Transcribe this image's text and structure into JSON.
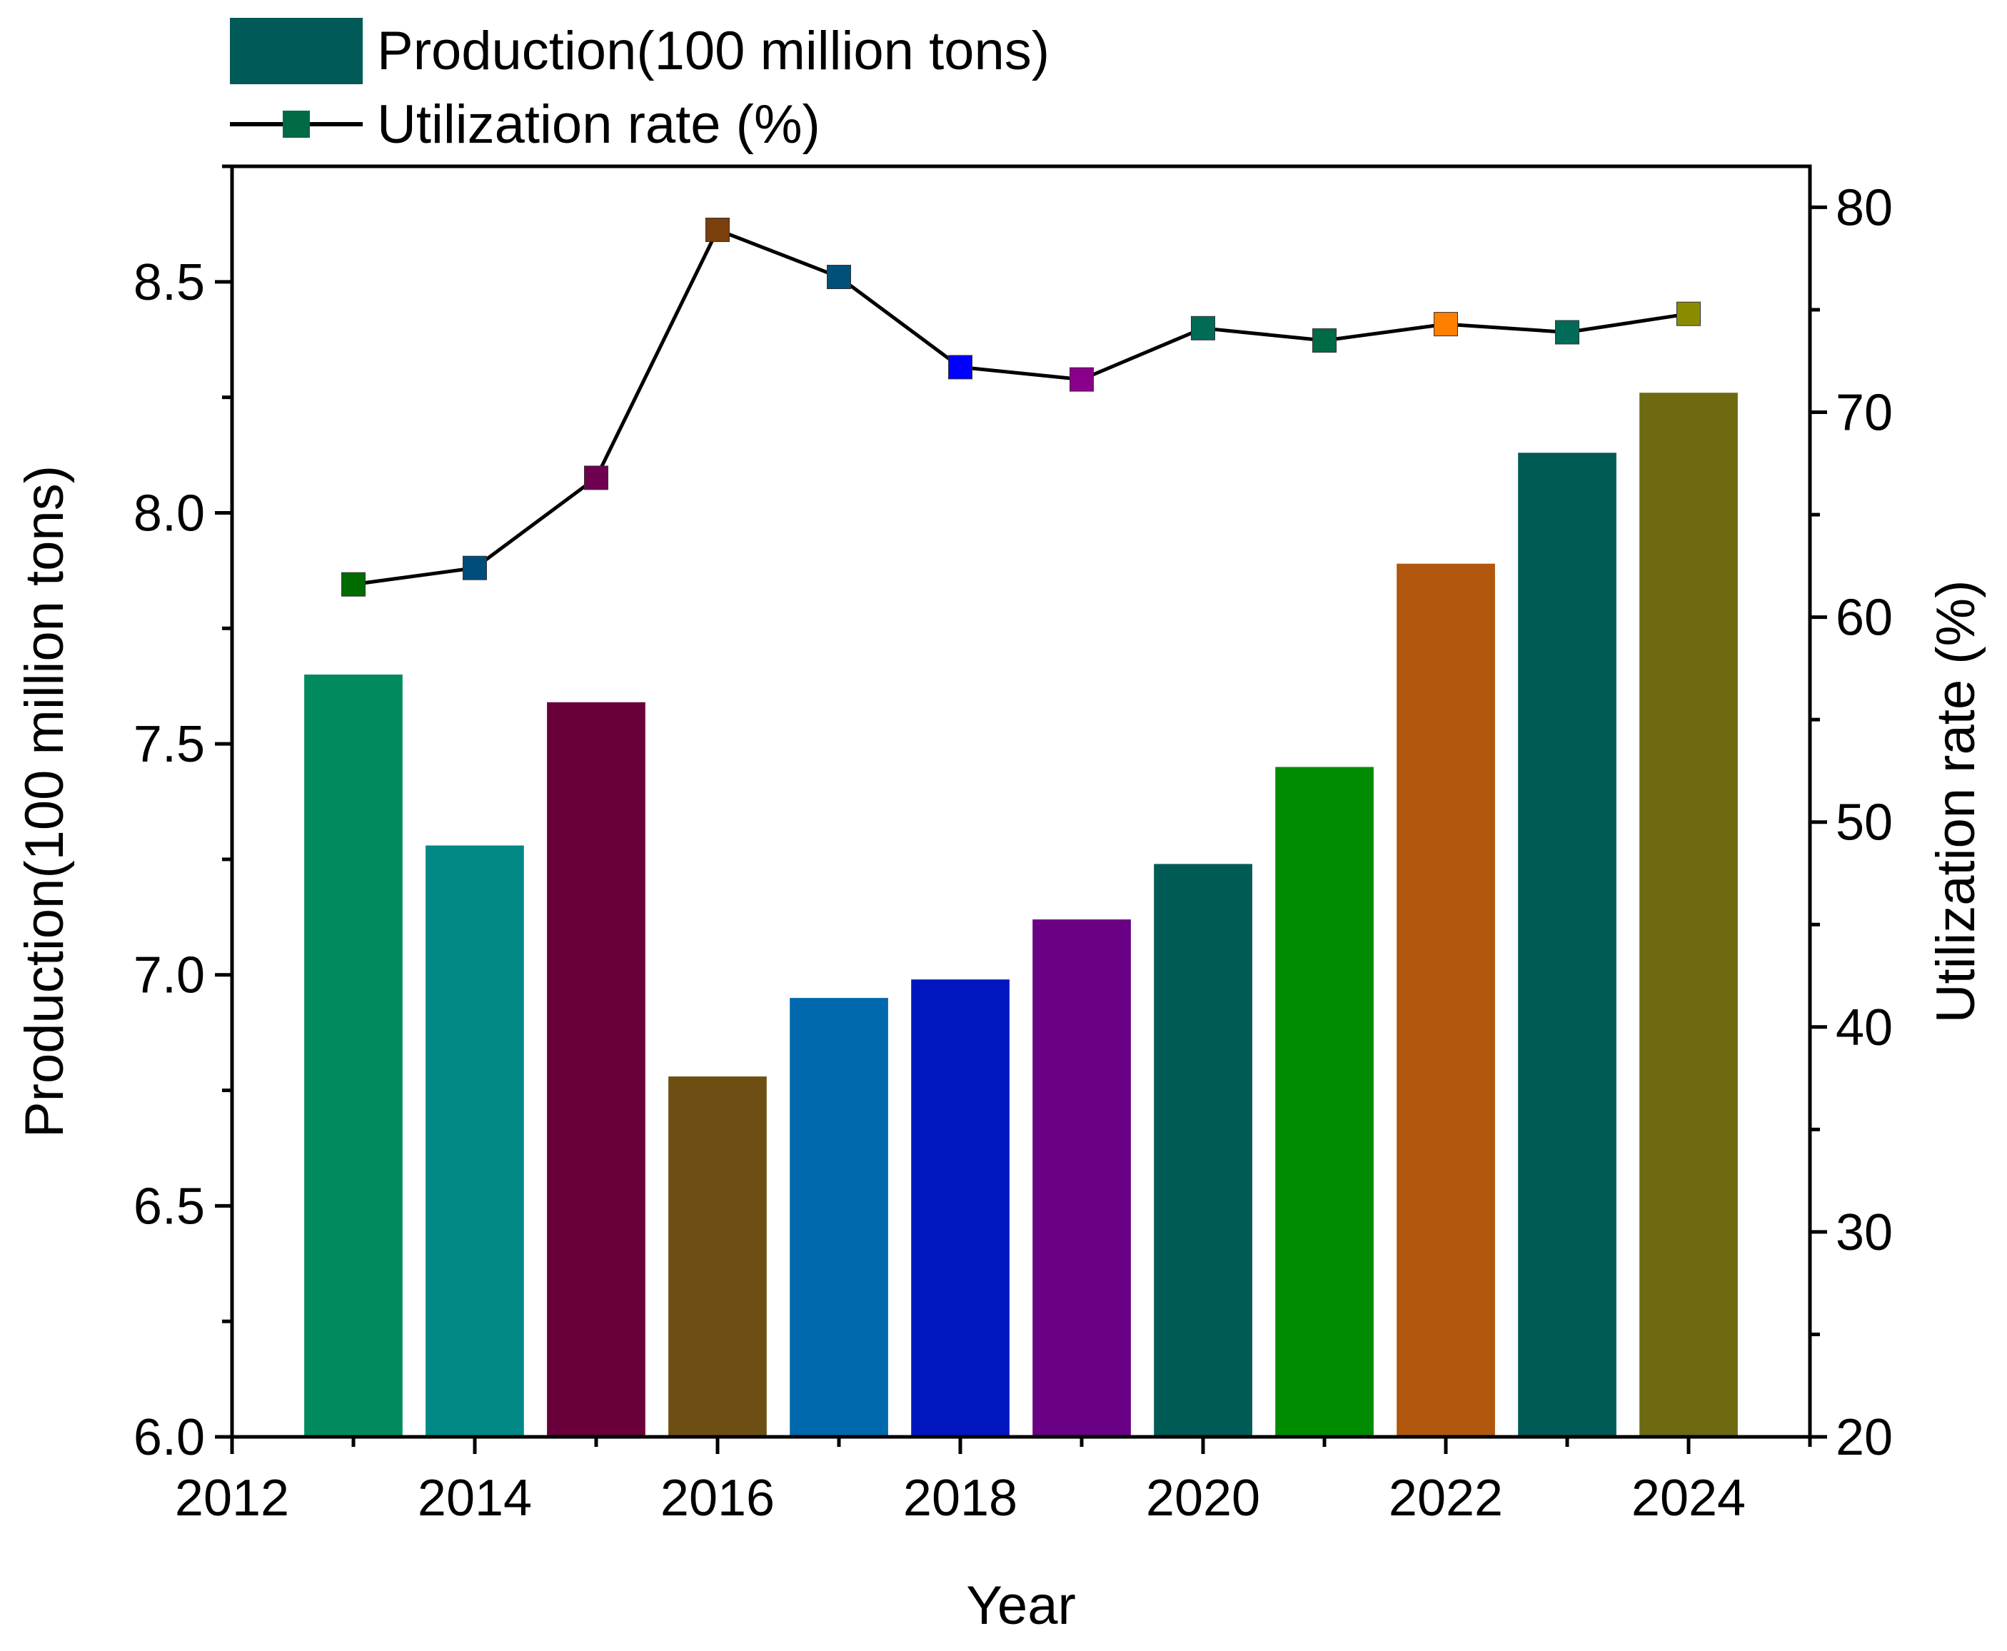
{
  "chart_data": {
    "type": "bar",
    "title": "",
    "xlabel": "Year",
    "ylabel": "Production(100 million tons)",
    "y2label": "Utilization rate (%)",
    "x": [
      2013,
      2014,
      2015,
      2016,
      2017,
      2018,
      2019,
      2020,
      2021,
      2022,
      2023,
      2024
    ],
    "xlim": [
      2012,
      2025
    ],
    "xticks": [
      2012,
      2014,
      2016,
      2018,
      2020,
      2022,
      2024
    ],
    "ylim": [
      6.0,
      8.75
    ],
    "yticks": [
      6.0,
      6.5,
      7.0,
      7.5,
      8.0,
      8.5
    ],
    "y2lim": [
      20,
      82
    ],
    "y2ticks": [
      20,
      30,
      40,
      50,
      60,
      70,
      80
    ],
    "grid": false,
    "legend_position": "top-left, above plot",
    "series": [
      {
        "name": "Production(100 million tons)",
        "type": "bar",
        "axis": "left",
        "legend_color": "#005a57",
        "values": [
          7.65,
          7.28,
          7.59,
          6.78,
          6.95,
          6.99,
          7.12,
          7.24,
          7.45,
          7.89,
          8.13,
          8.26
        ],
        "colors": [
          "#008a5e",
          "#008985",
          "#69003a",
          "#6e4f13",
          "#0068ad",
          "#0017c0",
          "#6a0084",
          "#005b57",
          "#008c00",
          "#b1570e",
          "#005b57",
          "#6e6a12"
        ]
      },
      {
        "name": "Utilization rate (%)",
        "type": "line",
        "axis": "right",
        "legend_color": "#006a44",
        "line_color": "#000000",
        "values": [
          61.6,
          62.4,
          66.8,
          78.9,
          76.6,
          72.2,
          71.6,
          74.1,
          73.5,
          74.3,
          73.9,
          74.8
        ],
        "marker_colors": [
          "#006b00",
          "#004d7c",
          "#6d0050",
          "#7a3f0d",
          "#00507a",
          "#0000ff",
          "#8a008a",
          "#006b57",
          "#006b44",
          "#ff7f00",
          "#006b57",
          "#8b8b00"
        ]
      }
    ]
  }
}
